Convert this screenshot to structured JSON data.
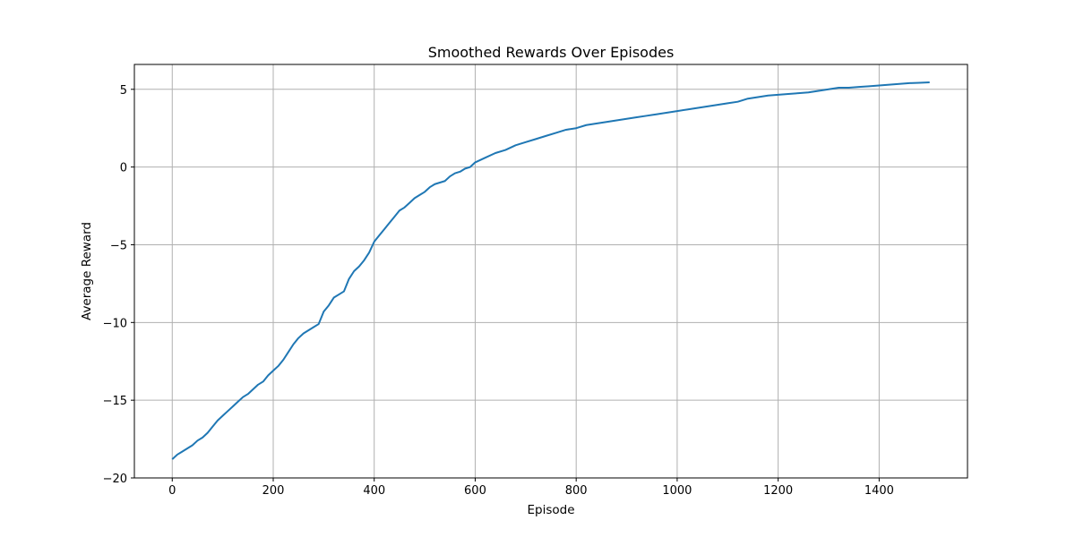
{
  "chart_data": {
    "type": "line",
    "title": "Smoothed Rewards Over Episodes",
    "xlabel": "Episode",
    "ylabel": "Average Reward",
    "xlim": [
      -75,
      1575
    ],
    "ylim": [
      -20,
      6.6
    ],
    "xticks": [
      0,
      200,
      400,
      600,
      800,
      1000,
      1200,
      1400
    ],
    "yticks": [
      -20,
      -15,
      -10,
      -5,
      0,
      5
    ],
    "xtick_labels": [
      "0",
      "200",
      "400",
      "600",
      "800",
      "1000",
      "1200",
      "1400"
    ],
    "ytick_labels": [
      "−20",
      "−15",
      "−10",
      "−5",
      "0",
      "5"
    ],
    "grid": true,
    "line_color": "#1f77b4",
    "series": [
      {
        "x": [
          0,
          10,
          20,
          30,
          40,
          50,
          60,
          70,
          80,
          90,
          100,
          110,
          120,
          130,
          140,
          150,
          160,
          170,
          180,
          190,
          200,
          210,
          220,
          230,
          240,
          250,
          260,
          270,
          280,
          290,
          300,
          310,
          320,
          330,
          340,
          350,
          360,
          370,
          380,
          390,
          400,
          410,
          420,
          430,
          440,
          450,
          460,
          470,
          480,
          490,
          500,
          510,
          520,
          530,
          540,
          550,
          560,
          570,
          580,
          590,
          600,
          620,
          640,
          660,
          680,
          700,
          720,
          740,
          760,
          780,
          800,
          820,
          840,
          860,
          880,
          900,
          920,
          940,
          960,
          980,
          1000,
          1020,
          1040,
          1060,
          1080,
          1100,
          1120,
          1140,
          1160,
          1180,
          1200,
          1220,
          1240,
          1260,
          1280,
          1300,
          1320,
          1340,
          1360,
          1380,
          1400,
          1420,
          1440,
          1460,
          1480,
          1500
        ],
        "y": [
          -18.8,
          -18.5,
          -18.3,
          -18.1,
          -17.9,
          -17.6,
          -17.4,
          -17.1,
          -16.7,
          -16.3,
          -16.0,
          -15.7,
          -15.4,
          -15.1,
          -14.8,
          -14.6,
          -14.3,
          -14.0,
          -13.8,
          -13.4,
          -13.1,
          -12.8,
          -12.4,
          -11.9,
          -11.4,
          -11.0,
          -10.7,
          -10.5,
          -10.3,
          -10.1,
          -9.3,
          -8.9,
          -8.4,
          -8.2,
          -8.0,
          -7.2,
          -6.7,
          -6.4,
          -6.0,
          -5.5,
          -4.8,
          -4.4,
          -4.0,
          -3.6,
          -3.2,
          -2.8,
          -2.6,
          -2.3,
          -2.0,
          -1.8,
          -1.6,
          -1.3,
          -1.1,
          -1.0,
          -0.9,
          -0.6,
          -0.4,
          -0.3,
          -0.1,
          0.0,
          0.3,
          0.6,
          0.9,
          1.1,
          1.4,
          1.6,
          1.8,
          2.0,
          2.2,
          2.4,
          2.5,
          2.7,
          2.8,
          2.9,
          3.0,
          3.1,
          3.2,
          3.3,
          3.4,
          3.5,
          3.6,
          3.7,
          3.8,
          3.9,
          4.0,
          4.1,
          4.2,
          4.4,
          4.5,
          4.6,
          4.65,
          4.7,
          4.75,
          4.8,
          4.9,
          5.0,
          5.1,
          5.1,
          5.15,
          5.2,
          5.25,
          5.3,
          5.35,
          5.4,
          5.42,
          5.45
        ]
      }
    ]
  }
}
